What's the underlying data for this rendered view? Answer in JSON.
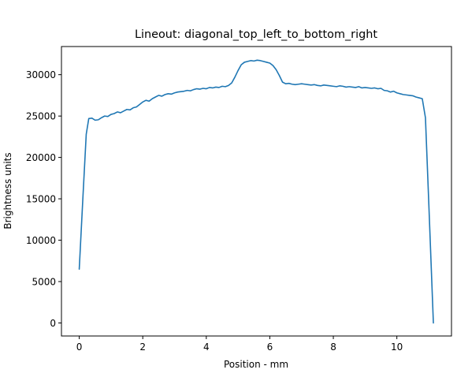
{
  "chart_data": {
    "type": "line",
    "title": "Lineout: diagonal_top_left_to_bottom_right",
    "xlabel": "Position - mm",
    "ylabel": "Brightness units",
    "xlim": [
      -0.56,
      11.72
    ],
    "ylim": [
      -1575,
      33400
    ],
    "grid": false,
    "x_ticks": [
      {
        "value": 0,
        "label": "0"
      },
      {
        "value": 2,
        "label": "2"
      },
      {
        "value": 4,
        "label": "4"
      },
      {
        "value": 6,
        "label": "6"
      },
      {
        "value": 8,
        "label": "8"
      },
      {
        "value": 10,
        "label": "10"
      }
    ],
    "y_ticks": [
      {
        "value": 0,
        "label": "0"
      },
      {
        "value": 5000,
        "label": "5000"
      },
      {
        "value": 10000,
        "label": "10000"
      },
      {
        "value": 15000,
        "label": "15000"
      },
      {
        "value": 20000,
        "label": "20000"
      },
      {
        "value": 25000,
        "label": "25000"
      },
      {
        "value": 30000,
        "label": "30000"
      }
    ],
    "series": [
      {
        "color": "#1f77b4",
        "x": [
          0,
          0.12,
          0.22,
          0.3,
          0.4,
          0.5,
          0.6,
          0.7,
          0.8,
          0.9,
          1.0,
          1.1,
          1.2,
          1.3,
          1.4,
          1.5,
          1.6,
          1.7,
          1.8,
          1.9,
          2.0,
          2.1,
          2.2,
          2.3,
          2.4,
          2.5,
          2.6,
          2.7,
          2.8,
          2.9,
          3.0,
          3.1,
          3.2,
          3.3,
          3.4,
          3.5,
          3.6,
          3.7,
          3.8,
          3.9,
          4.0,
          4.1,
          4.2,
          4.3,
          4.4,
          4.5,
          4.6,
          4.7,
          4.8,
          4.9,
          5.0,
          5.1,
          5.2,
          5.3,
          5.4,
          5.5,
          5.6,
          5.7,
          5.8,
          5.9,
          6.0,
          6.1,
          6.2,
          6.3,
          6.4,
          6.5,
          6.6,
          6.7,
          6.8,
          6.9,
          7.0,
          7.1,
          7.2,
          7.3,
          7.4,
          7.5,
          7.6,
          7.7,
          7.8,
          7.9,
          8.0,
          8.1,
          8.2,
          8.3,
          8.4,
          8.5,
          8.6,
          8.7,
          8.8,
          8.9,
          9.0,
          9.1,
          9.2,
          9.3,
          9.4,
          9.5,
          9.6,
          9.7,
          9.8,
          9.9,
          10.0,
          10.1,
          10.2,
          10.3,
          10.4,
          10.5,
          10.6,
          10.7,
          10.8,
          10.9,
          11.0,
          11.15
        ],
        "y": [
          6500,
          15500,
          22800,
          24700,
          24750,
          24500,
          24550,
          24800,
          25000,
          24950,
          25200,
          25300,
          25500,
          25400,
          25600,
          25800,
          25750,
          26000,
          26100,
          26400,
          26700,
          26900,
          26800,
          27100,
          27300,
          27500,
          27400,
          27600,
          27700,
          27650,
          27800,
          27900,
          27950,
          28000,
          28100,
          28050,
          28200,
          28300,
          28250,
          28350,
          28300,
          28450,
          28400,
          28500,
          28450,
          28600,
          28550,
          28700,
          29000,
          29700,
          30500,
          31200,
          31500,
          31600,
          31700,
          31650,
          31750,
          31700,
          31600,
          31500,
          31400,
          31100,
          30600,
          29900,
          29100,
          28900,
          28950,
          28850,
          28800,
          28850,
          28900,
          28850,
          28800,
          28750,
          28800,
          28700,
          28650,
          28750,
          28700,
          28650,
          28600,
          28550,
          28650,
          28600,
          28500,
          28550,
          28500,
          28450,
          28550,
          28400,
          28450,
          28400,
          28350,
          28400,
          28300,
          28350,
          28100,
          28050,
          27900,
          28000,
          27800,
          27700,
          27600,
          27550,
          27500,
          27450,
          27300,
          27200,
          27100,
          24800,
          15000,
          0
        ]
      }
    ]
  }
}
